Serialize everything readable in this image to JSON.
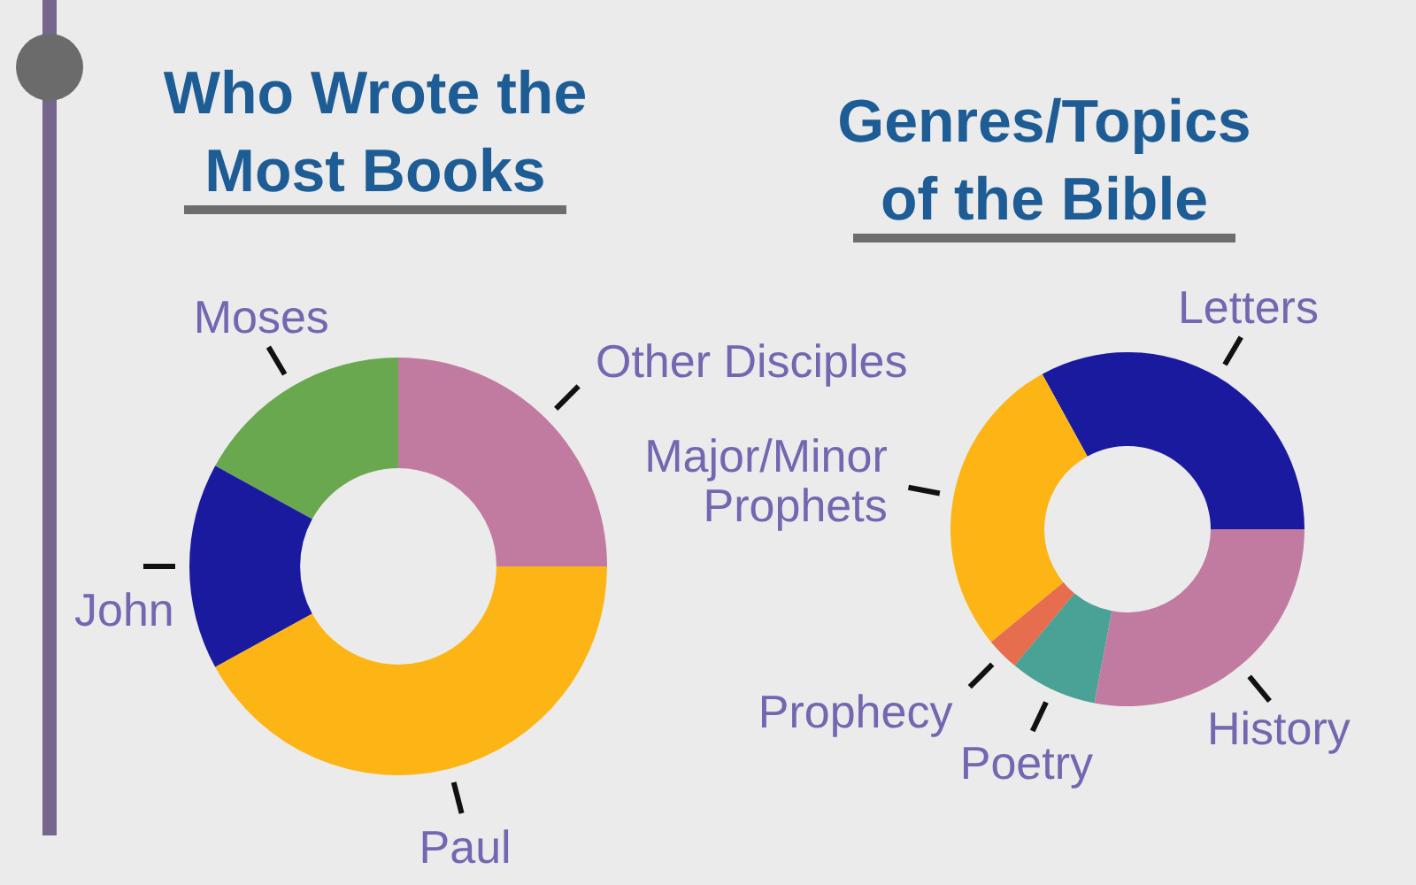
{
  "chart_data": [
    {
      "type": "donut",
      "title": "Who Wrote the Most Books",
      "categories": [
        "Other Disciples",
        "Moses",
        "John",
        "Paul"
      ],
      "values": [
        25,
        17,
        16,
        42
      ],
      "colors": [
        "#c27ba0",
        "#6aa84f",
        "#1a1a9e",
        "#fcb515"
      ]
    },
    {
      "type": "donut",
      "title": "Genres/Topics of the Bible",
      "categories": [
        "Letters",
        "Major/Minor Prophets",
        "Prophecy",
        "Poetry",
        "History"
      ],
      "values": [
        33,
        28,
        3,
        8,
        28
      ],
      "colors": [
        "#1a1a9e",
        "#fcb515",
        "#e66d4d",
        "#4aa195",
        "#c27ba0"
      ]
    }
  ]
}
